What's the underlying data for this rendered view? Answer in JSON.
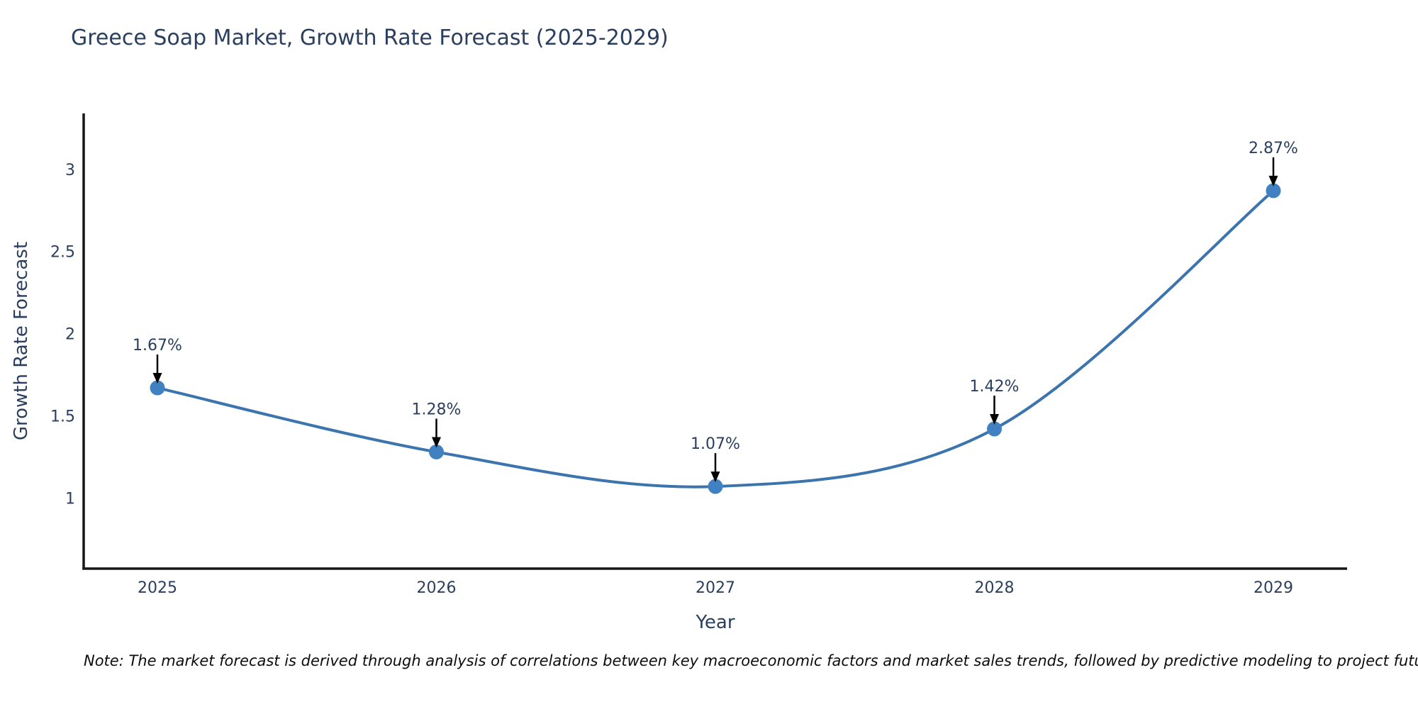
{
  "title": "Greece Soap Market, Growth Rate Forecast (2025-2029)",
  "note": "Note: The market forecast is derived through analysis of correlations between key macroeconomic factors and market sales trends, followed by predictive modeling to project future sales",
  "chart_data": {
    "type": "line",
    "title": "Greece Soap Market, Growth Rate Forecast (2025-2029)",
    "categories": [
      "2025",
      "2026",
      "2027",
      "2028",
      "2029"
    ],
    "values": [
      1.67,
      1.28,
      1.07,
      1.42,
      2.87
    ],
    "point_labels": [
      "1.67%",
      "1.28%",
      "1.07%",
      "1.42%",
      "2.87%"
    ],
    "xlabel": "Year",
    "ylabel": "Growth Rate Forecast",
    "y_ticks": [
      1,
      1.5,
      2,
      2.5,
      3
    ],
    "y_tick_labels": [
      "1",
      "1.5",
      "2",
      "2.5",
      "3"
    ],
    "ylim": [
      0.57,
      3.34
    ],
    "line_shape": "spline",
    "grid": false,
    "legend": "none",
    "colors": {
      "line": "#3c74ae",
      "marker": "#4181c2",
      "text": "#2a3f5f",
      "axis": "#161616",
      "arrow": "#000000"
    }
  }
}
